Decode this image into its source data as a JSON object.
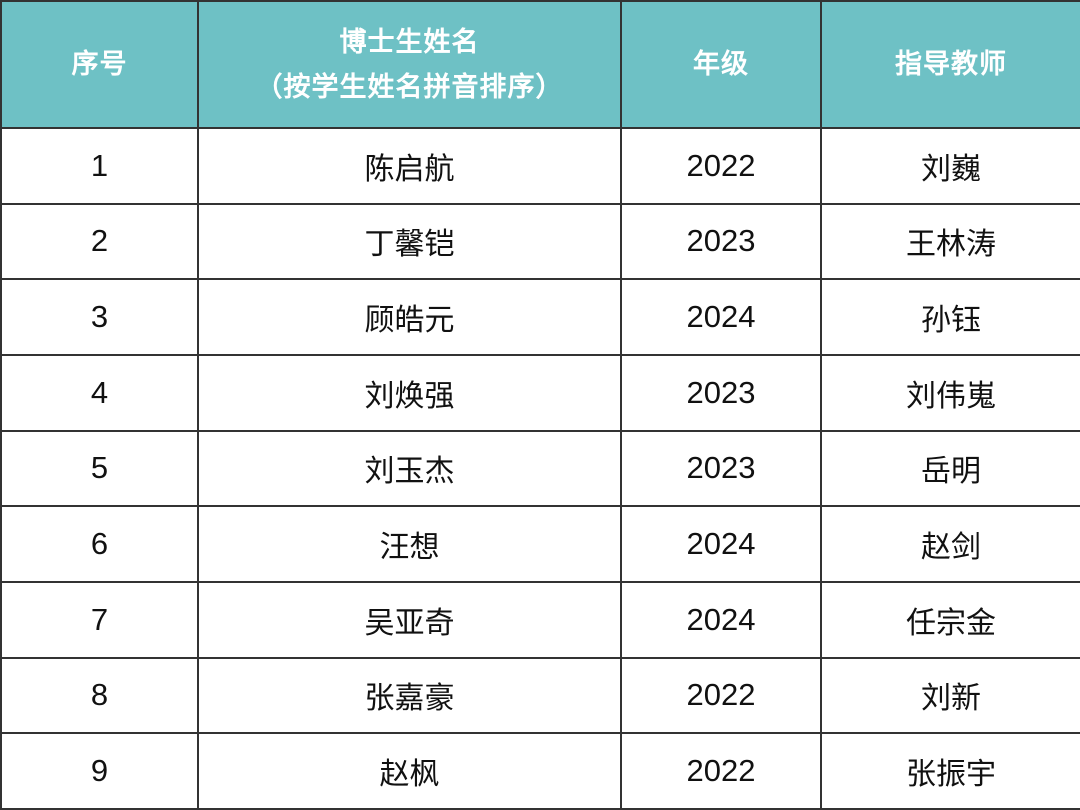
{
  "colors": {
    "header_bg": "#6ec1c5",
    "header_text": "#ffffff",
    "border": "#333333",
    "body_text": "#111111"
  },
  "table": {
    "header": {
      "col_no": "序号",
      "col_name_line1": "博士生姓名",
      "col_name_line2": "（按学生姓名拼音排序）",
      "col_grade": "年级",
      "col_advisor": "指导教师"
    },
    "rows": [
      {
        "no": "1",
        "name": "陈启航",
        "grade": "2022",
        "teacher": "刘巍"
      },
      {
        "no": "2",
        "name": "丁馨铠",
        "grade": "2023",
        "teacher": "王林涛"
      },
      {
        "no": "3",
        "name": "顾皓元",
        "grade": "2024",
        "teacher": "孙钰"
      },
      {
        "no": "4",
        "name": "刘焕强",
        "grade": "2023",
        "teacher": "刘伟嵬"
      },
      {
        "no": "5",
        "name": "刘玉杰",
        "grade": "2023",
        "teacher": "岳明"
      },
      {
        "no": "6",
        "name": "汪想",
        "grade": "2024",
        "teacher": "赵剑"
      },
      {
        "no": "7",
        "name": "吴亚奇",
        "grade": "2024",
        "teacher": "任宗金"
      },
      {
        "no": "8",
        "name": "张嘉豪",
        "grade": "2022",
        "teacher": "刘新"
      },
      {
        "no": "9",
        "name": "赵枫",
        "grade": "2022",
        "teacher": "张振宇"
      }
    ]
  }
}
